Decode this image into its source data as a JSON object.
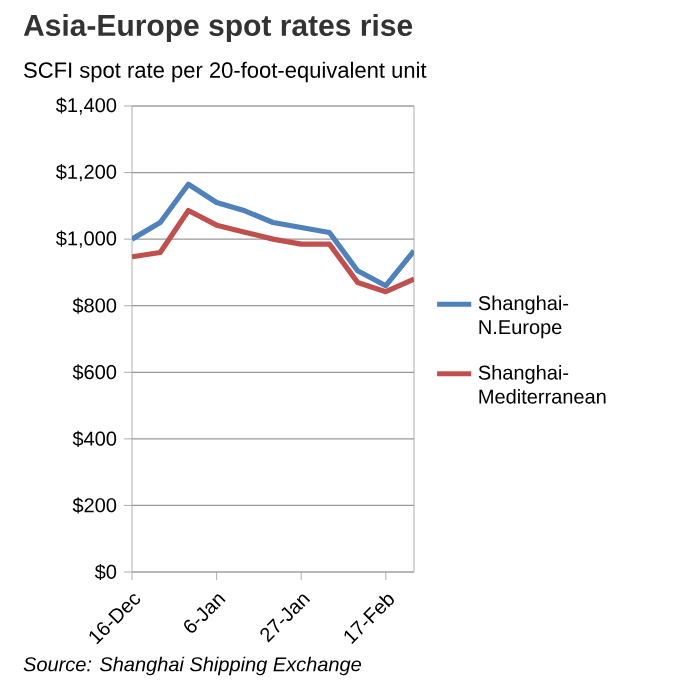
{
  "chart_data": {
    "type": "line",
    "title": "Asia-Europe spot rates rise",
    "subtitle": "SCFI spot rate per 20-foot-equivalent unit",
    "categories": [
      "16-Dec",
      null,
      null,
      "6-Jan",
      null,
      null,
      "27-Jan",
      null,
      null,
      "17-Feb",
      null
    ],
    "series": [
      {
        "name": "Shanghai-N.Europe",
        "color": "#4f81bd",
        "values": [
          1000,
          1050,
          1165,
          1110,
          1085,
          1050,
          1035,
          1020,
          905,
          860,
          965
        ]
      },
      {
        "name": "Shanghai-Mediterranean",
        "color": "#c0504d",
        "values": [
          947,
          960,
          1086,
          1042,
          1021,
          1000,
          985,
          985,
          870,
          842,
          880
        ]
      }
    ],
    "ylim": [
      0,
      1400
    ],
    "yticks": [
      {
        "value": 0,
        "label": "$0"
      },
      {
        "value": 200,
        "label": "$200"
      },
      {
        "value": 400,
        "label": "$400"
      },
      {
        "value": 600,
        "label": "$600"
      },
      {
        "value": 800,
        "label": "$800"
      },
      {
        "value": 1000,
        "label": "$1,000"
      },
      {
        "value": 1200,
        "label": "$1,200"
      },
      {
        "value": 1400,
        "label": "$1,400"
      }
    ],
    "grid": "y",
    "legend": "right",
    "marker": "none",
    "line_style": "solid",
    "annotations": [
      "Source:  Shanghai Shipping Exchange"
    ]
  }
}
